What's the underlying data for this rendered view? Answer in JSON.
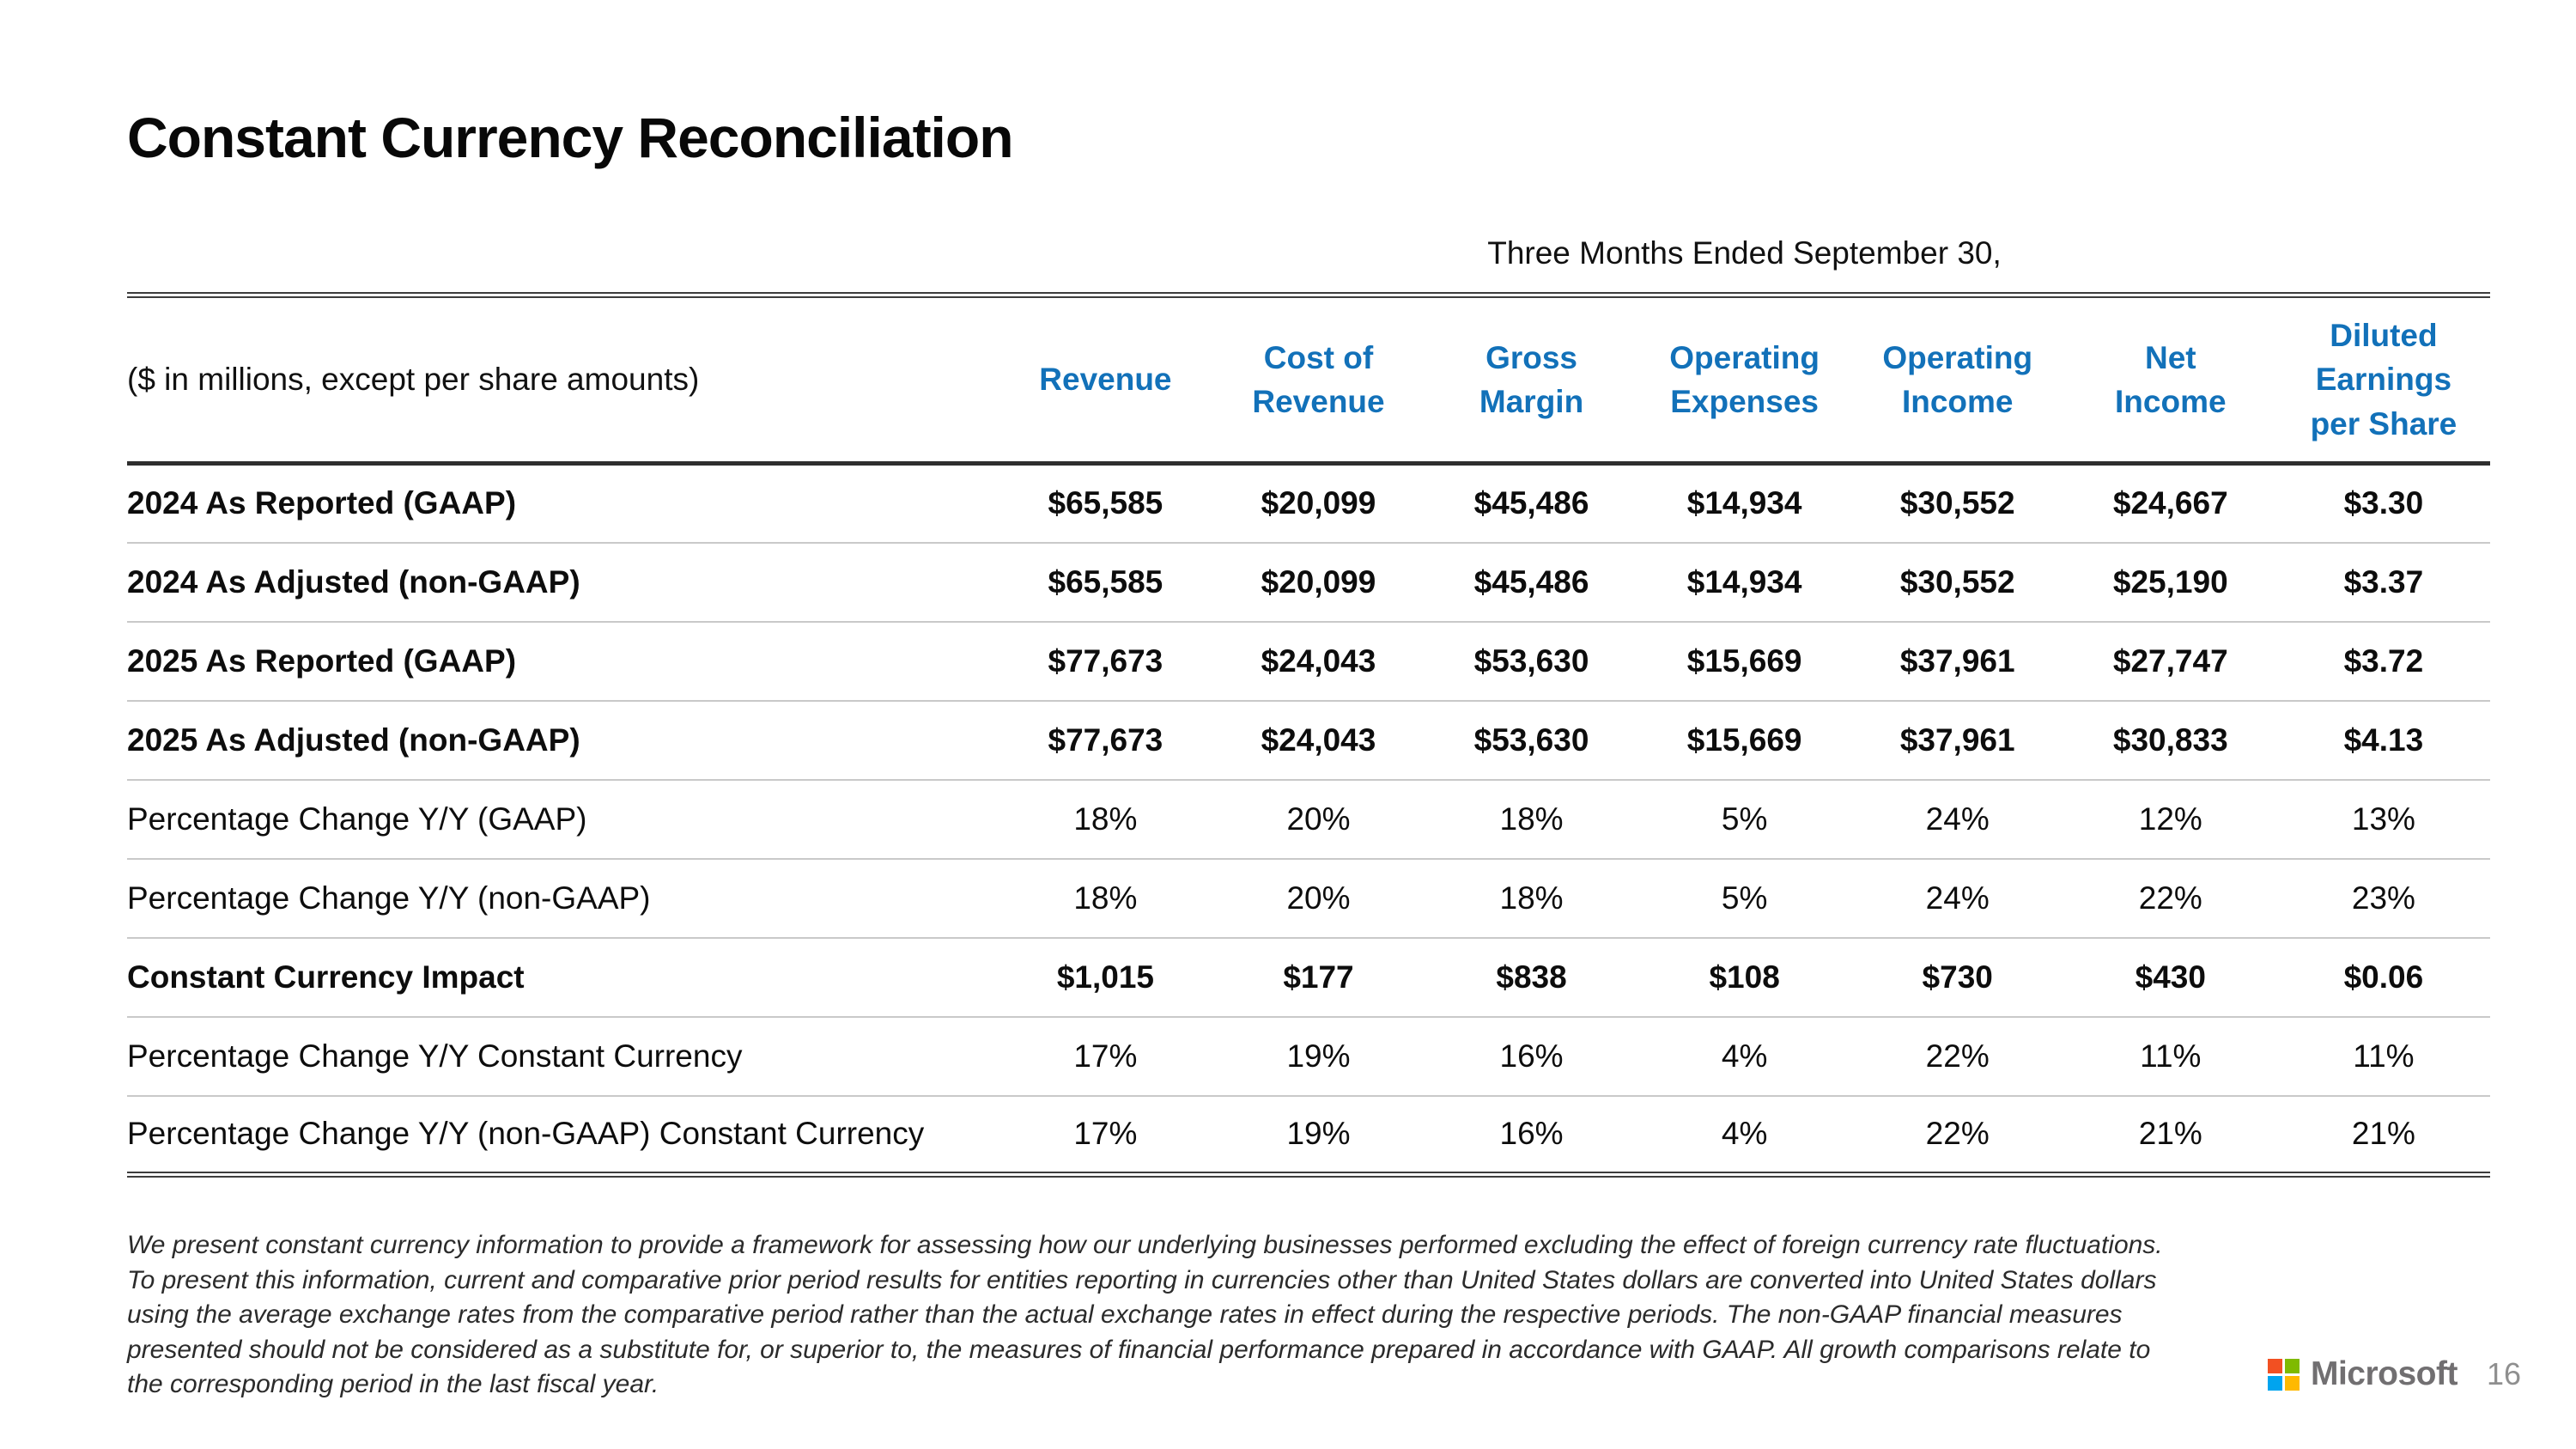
{
  "slide": {
    "title": "Constant Currency Reconciliation",
    "footer": {
      "company": "Microsoft",
      "page_number": "16"
    }
  },
  "table": {
    "caption": "Three Months Ended September 30,",
    "unit_note": "($ in millions, except per share amounts)",
    "columns": [
      "Revenue",
      "Cost of\nRevenue",
      "Gross\nMargin",
      "Operating\nExpenses",
      "Operating\nIncome",
      "Net\nIncome",
      "Diluted\nEarnings\nper Share"
    ],
    "rows": [
      {
        "label": "2024 As Reported (GAAP)",
        "values": [
          "$65,585",
          "$20,099",
          "$45,486",
          "$14,934",
          "$30,552",
          "$24,667",
          "$3.30"
        ]
      },
      {
        "label": "2024 As Adjusted (non-GAAP)",
        "values": [
          "$65,585",
          "$20,099",
          "$45,486",
          "$14,934",
          "$30,552",
          "$25,190",
          "$3.37"
        ]
      },
      {
        "label": "2025 As Reported (GAAP)",
        "values": [
          "$77,673",
          "$24,043",
          "$53,630",
          "$15,669",
          "$37,961",
          "$27,747",
          "$3.72"
        ]
      },
      {
        "label": "2025 As Adjusted (non-GAAP)",
        "values": [
          "$77,673",
          "$24,043",
          "$53,630",
          "$15,669",
          "$37,961",
          "$30,833",
          "$4.13"
        ]
      },
      {
        "label": "Percentage Change Y/Y (GAAP)",
        "values": [
          "18%",
          "20%",
          "18%",
          "5%",
          "24%",
          "12%",
          "13%"
        ]
      },
      {
        "label": "Percentage Change Y/Y (non-GAAP)",
        "values": [
          "18%",
          "20%",
          "18%",
          "5%",
          "24%",
          "22%",
          "23%"
        ]
      },
      {
        "label": "Constant Currency Impact",
        "values": [
          "$1,015",
          "$177",
          "$838",
          "$108",
          "$730",
          "$430",
          "$0.06"
        ]
      },
      {
        "label": "Percentage Change Y/Y Constant Currency",
        "values": [
          "17%",
          "19%",
          "16%",
          "4%",
          "22%",
          "11%",
          "11%"
        ]
      },
      {
        "label": "Percentage Change Y/Y (non-GAAP) Constant Currency",
        "values": [
          "17%",
          "19%",
          "16%",
          "4%",
          "22%",
          "21%",
          "21%"
        ]
      }
    ]
  },
  "footnote": {
    "lines": [
      "We present constant currency information to provide a framework for assessing how our underlying businesses performed excluding the effect of foreign currency rate fluctuations.",
      "To present this information, current and comparative prior period results for entities reporting in currencies other than United States dollars are converted into United States dollars",
      "using the average exchange rates from the comparative period rather than the actual exchange rates in effect during the respective periods. The non-GAAP financial measures",
      "presented should not be considered as a substitute for, or superior to, the measures of financial performance prepared in accordance with GAAP. All growth comparisons relate to",
      "the corresponding period in the last fiscal year."
    ]
  },
  "colors": {
    "header_blue": "#1271B9",
    "rule_dark": "#3d3d3d",
    "rule_light": "#c9c9c9",
    "logo_red": "#F25022",
    "logo_green": "#7FBA00",
    "logo_blue": "#00A4EF",
    "logo_yellow": "#FFB900",
    "microsoft_gray": "#716F71"
  }
}
